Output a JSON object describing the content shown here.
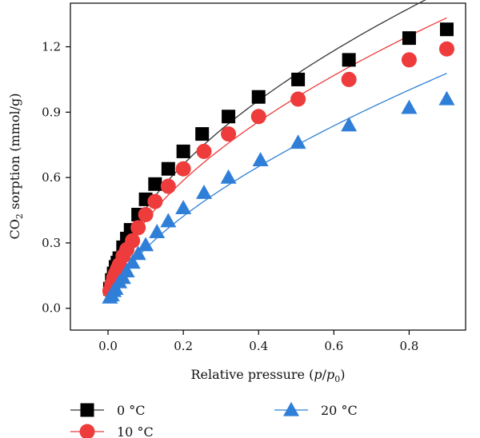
{
  "chart_data": {
    "type": "scatter",
    "xlabel": {
      "prefix": "Relative pressure (",
      "var_p": "p",
      "slash": "/",
      "var_p0": "p",
      "sub0": "0",
      "suffix": ")"
    },
    "ylabel": {
      "prefix": "CO",
      "sub": "2",
      "suffix": " sorption (mmol/g)"
    },
    "xlim": [
      -0.1,
      0.95
    ],
    "ylim": [
      -0.1,
      1.4
    ],
    "xticks": [
      "0.0",
      "0.2",
      "0.4",
      "0.6",
      "0.8"
    ],
    "xtick_values": [
      0.0,
      0.2,
      0.4,
      0.6,
      0.8
    ],
    "yticks": [
      "0.0",
      "0.3",
      "0.6",
      "0.9",
      "1.2"
    ],
    "ytick_values": [
      0.0,
      0.3,
      0.6,
      0.9,
      1.2
    ],
    "grid": false,
    "legend_position": "bottom",
    "series": [
      {
        "name": "0 °C",
        "marker": "square",
        "color": "#000000",
        "line_color": "#333333",
        "x": [
          0.005,
          0.01,
          0.015,
          0.02,
          0.025,
          0.03,
          0.04,
          0.05,
          0.06,
          0.08,
          0.1,
          0.125,
          0.16,
          0.2,
          0.25,
          0.32,
          0.4,
          0.505,
          0.64,
          0.8,
          0.9
        ],
        "y": [
          0.09,
          0.13,
          0.16,
          0.19,
          0.21,
          0.23,
          0.28,
          0.32,
          0.36,
          0.43,
          0.5,
          0.57,
          0.64,
          0.72,
          0.8,
          0.88,
          0.97,
          1.05,
          1.14,
          1.24,
          1.28
        ]
      },
      {
        "name": "10 °C",
        "marker": "circle",
        "color": "#ee3b3b",
        "line_color": "#ee3b3b",
        "x": [
          0.005,
          0.01,
          0.015,
          0.02,
          0.025,
          0.03,
          0.04,
          0.05,
          0.065,
          0.08,
          0.1,
          0.125,
          0.16,
          0.2,
          0.255,
          0.32,
          0.4,
          0.505,
          0.64,
          0.8,
          0.9
        ],
        "y": [
          0.08,
          0.11,
          0.14,
          0.16,
          0.18,
          0.2,
          0.24,
          0.27,
          0.31,
          0.37,
          0.43,
          0.49,
          0.56,
          0.64,
          0.72,
          0.8,
          0.88,
          0.96,
          1.05,
          1.14,
          1.19
        ]
      },
      {
        "name": "20 °C",
        "marker": "triangle",
        "color": "#2f7fd8",
        "line_color": "#2f7fd8",
        "x": [
          0.005,
          0.01,
          0.015,
          0.02,
          0.03,
          0.04,
          0.05,
          0.065,
          0.08,
          0.1,
          0.13,
          0.16,
          0.2,
          0.255,
          0.32,
          0.405,
          0.505,
          0.64,
          0.8,
          0.9
        ],
        "y": [
          0.05,
          0.06,
          0.08,
          0.09,
          0.12,
          0.14,
          0.17,
          0.21,
          0.25,
          0.29,
          0.35,
          0.4,
          0.46,
          0.53,
          0.6,
          0.68,
          0.76,
          0.84,
          0.92,
          0.96
        ]
      }
    ]
  }
}
